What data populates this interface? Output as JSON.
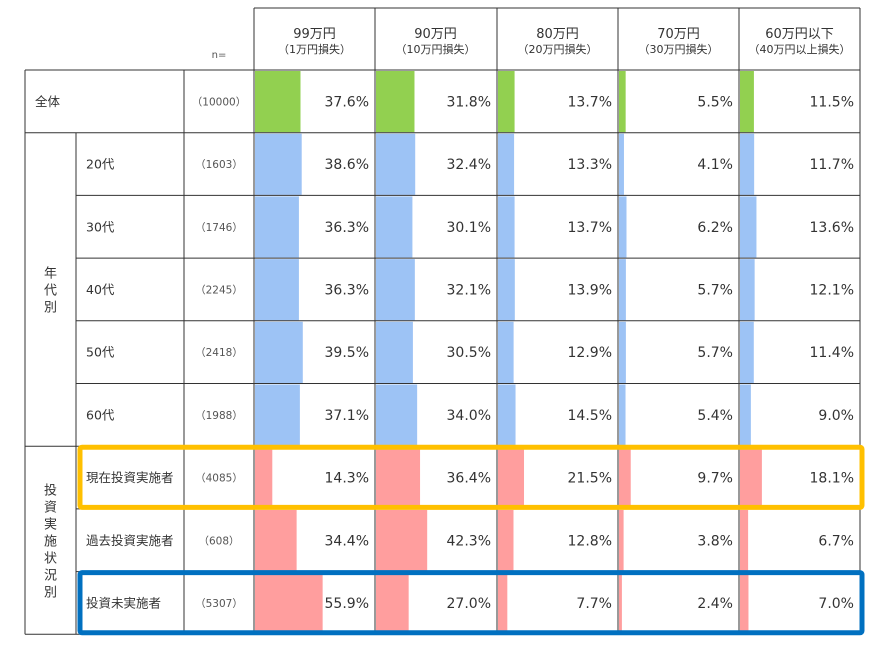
{
  "chart_data": {
    "type": "table",
    "n_label": "n=",
    "columns": [
      {
        "label": "99万円",
        "sub": "（1万円損失）"
      },
      {
        "label": "90万円",
        "sub": "（10万円損失）"
      },
      {
        "label": "80万円",
        "sub": "（20万円損失）"
      },
      {
        "label": "70万円",
        "sub": "（30万円損失）"
      },
      {
        "label": "60万円以下",
        "sub": "（40万円以上損失）"
      }
    ],
    "groups": [
      {
        "label": "",
        "rows": [
          {
            "label": "全体",
            "n": "（10000）",
            "values": [
              37.6,
              31.8,
              13.7,
              5.5,
              11.5
            ],
            "display": [
              "37.6%",
              "31.8%",
              "13.7%",
              "5.5%",
              "11.5%"
            ],
            "color": "#92d050"
          }
        ]
      },
      {
        "label": "年代別",
        "rows": [
          {
            "label": "20代",
            "n": "（1603）",
            "values": [
              38.6,
              32.4,
              13.3,
              4.1,
              11.7
            ],
            "display": [
              "38.6%",
              "32.4%",
              "13.3%",
              "4.1%",
              "11.7%"
            ],
            "color": "#9dc3f5"
          },
          {
            "label": "30代",
            "n": "（1746）",
            "values": [
              36.3,
              30.1,
              13.7,
              6.2,
              13.6
            ],
            "display": [
              "36.3%",
              "30.1%",
              "13.7%",
              "6.2%",
              "13.6%"
            ],
            "color": "#9dc3f5"
          },
          {
            "label": "40代",
            "n": "（2245）",
            "values": [
              36.3,
              32.1,
              13.9,
              5.7,
              12.1
            ],
            "display": [
              "36.3%",
              "32.1%",
              "13.9%",
              "5.7%",
              "12.1%"
            ],
            "color": "#9dc3f5"
          },
          {
            "label": "50代",
            "n": "（2418）",
            "values": [
              39.5,
              30.5,
              12.9,
              5.7,
              11.4
            ],
            "display": [
              "39.5%",
              "30.5%",
              "12.9%",
              "5.7%",
              "11.4%"
            ],
            "color": "#9dc3f5"
          },
          {
            "label": "60代",
            "n": "（1988）",
            "values": [
              37.1,
              34.0,
              14.5,
              5.4,
              9.0
            ],
            "display": [
              "37.1%",
              "34.0%",
              "14.5%",
              "5.4%",
              "9.0%"
            ],
            "color": "#9dc3f5"
          }
        ]
      },
      {
        "label": "投資実施状況別",
        "rows": [
          {
            "label": "現在投資実施者",
            "n": "（4085）",
            "values": [
              14.3,
              36.4,
              21.5,
              9.7,
              18.1
            ],
            "display": [
              "14.3%",
              "36.4%",
              "21.5%",
              "9.7%",
              "18.1%"
            ],
            "color": "#ff9e9e",
            "highlight": "#ffc000"
          },
          {
            "label": "過去投資実施者",
            "n": "（608）",
            "values": [
              34.4,
              42.3,
              12.8,
              3.8,
              6.7
            ],
            "display": [
              "34.4%",
              "42.3%",
              "12.8%",
              "3.8%",
              "6.7%"
            ],
            "color": "#ff9e9e"
          },
          {
            "label": "投資未実施者",
            "n": "（5307）",
            "values": [
              55.9,
              27.0,
              7.7,
              2.4,
              7.0
            ],
            "display": [
              "55.9%",
              "27.0%",
              "7.7%",
              "2.4%",
              "7.0%"
            ],
            "color": "#ff9e9e",
            "highlight": "#0070c0"
          }
        ]
      }
    ],
    "value_range": [
      0,
      100
    ]
  }
}
